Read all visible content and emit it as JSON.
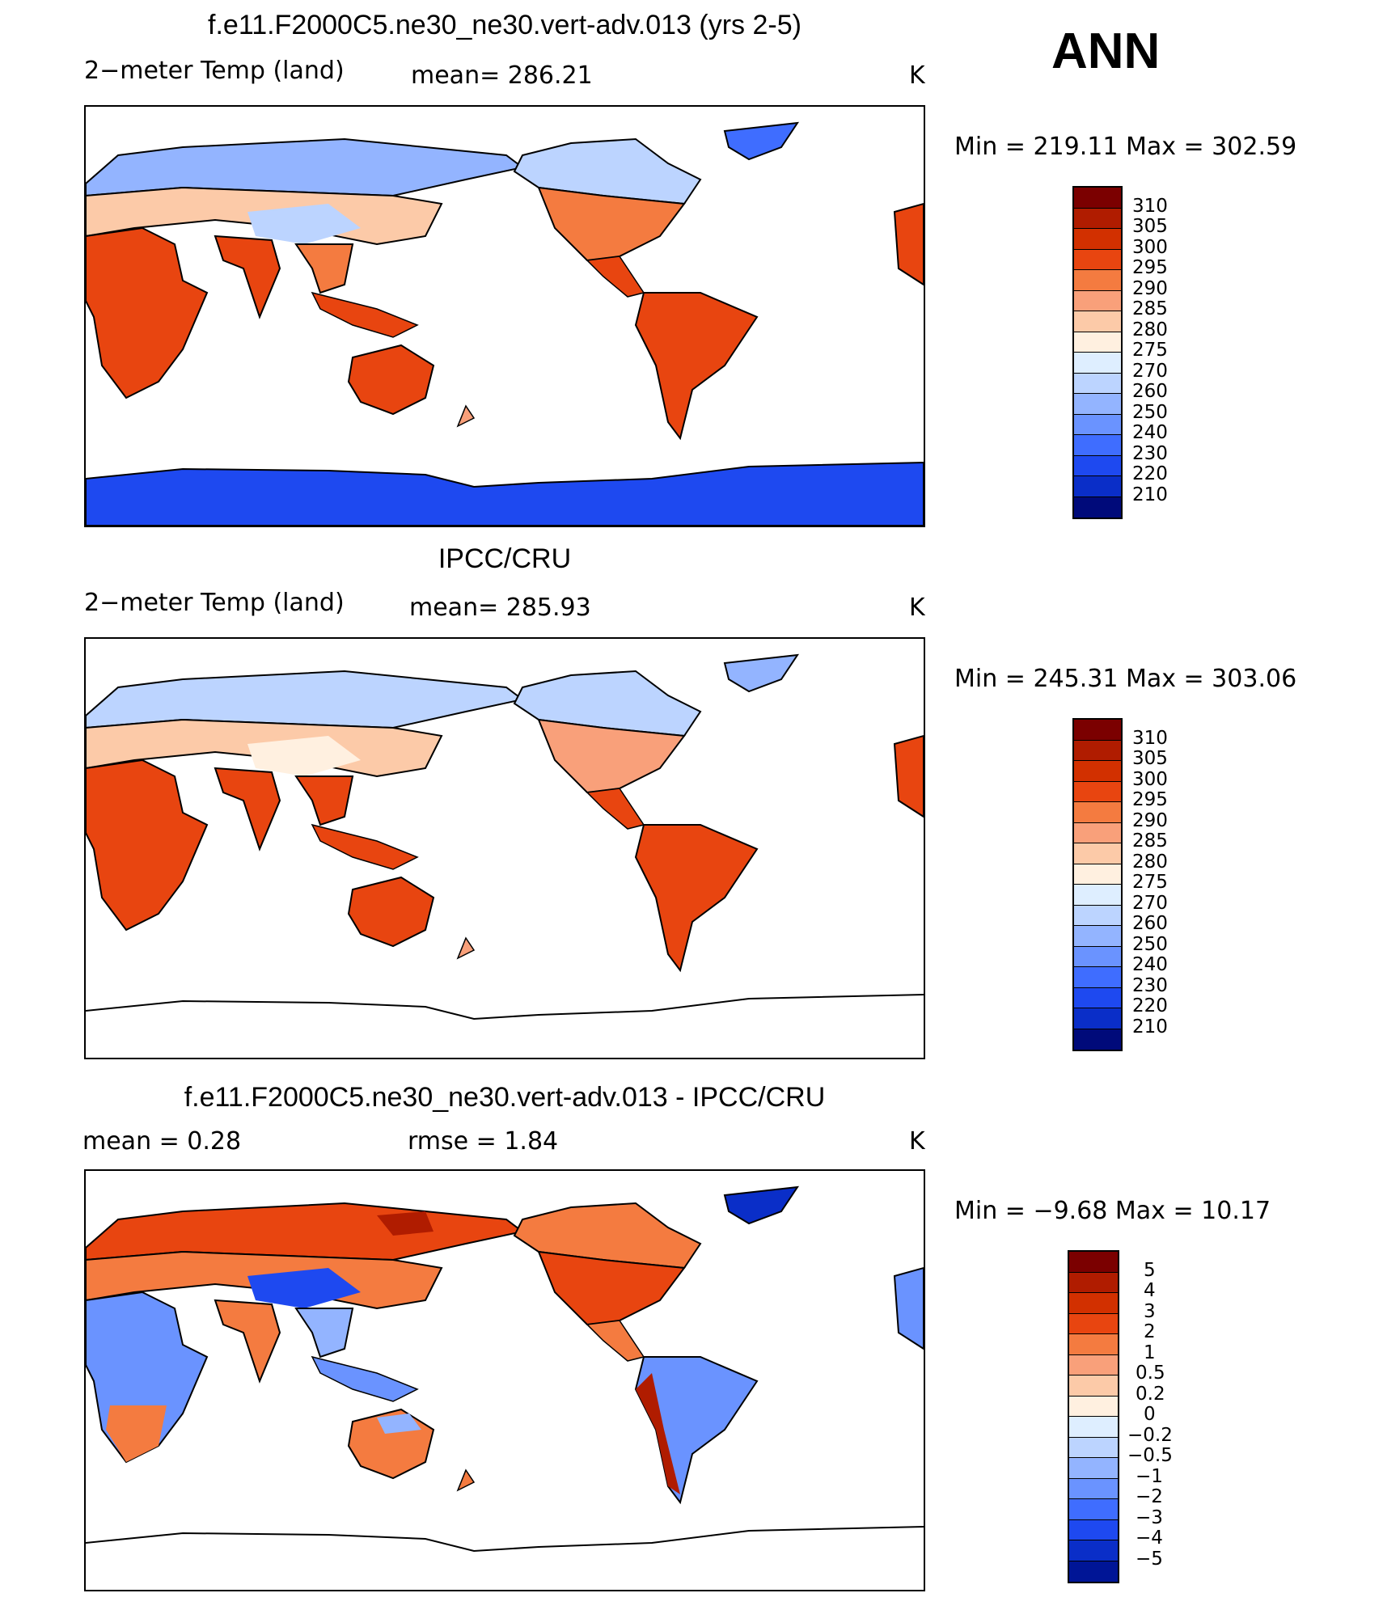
{
  "season": "ANN",
  "colors": {
    "scale": [
      "#7b0000",
      "#b01c00",
      "#d23000",
      "#e84510",
      "#f47b40",
      "#f9a07a",
      "#fccaa8",
      "#fff0e0",
      "#deeeff",
      "#bcd4ff",
      "#93b4ff",
      "#6a93ff",
      "#3f6dff",
      "#1e49f0",
      "#0a2ec8",
      "#001596",
      "#000a7a"
    ],
    "diff_scale": [
      "#7b0000",
      "#b01c00",
      "#d23000",
      "#e84510",
      "#f47b40",
      "#f9a07a",
      "#fccaa8",
      "#fff0e0",
      "#deeeff",
      "#bcd4ff",
      "#93b4ff",
      "#6a93ff",
      "#3f6dff",
      "#1e49f0",
      "#0a2ec8",
      "#001596"
    ]
  },
  "panels": [
    {
      "title": "f.e11.F2000C5.ne30_ne30.vert-adv.013 (yrs 2-5)",
      "variable": "2−meter Temp (land)",
      "stat_left": "mean=  286.21",
      "units": "K",
      "minmax": "Min  =  219.11  Max  =  302.59",
      "levels": [
        "310",
        "305",
        "300",
        "295",
        "290",
        "285",
        "280",
        "275",
        "270",
        "260",
        "250",
        "240",
        "230",
        "220",
        "210"
      ],
      "antarctica_filled": true
    },
    {
      "title": "IPCC/CRU",
      "variable": "2−meter Temp (land)",
      "stat_left": "mean=  285.93",
      "units": "K",
      "minmax": "Min  =  245.31  Max  =  303.06",
      "levels": [
        "310",
        "305",
        "300",
        "295",
        "290",
        "285",
        "280",
        "275",
        "270",
        "260",
        "250",
        "240",
        "230",
        "220",
        "210"
      ],
      "antarctica_filled": false
    },
    {
      "title": "f.e11.F2000C5.ne30_ne30.vert-adv.013 - IPCC/CRU",
      "variable": "",
      "stat_left": "mean =     0.28",
      "stat_mid": "rmse =     1.84",
      "units": "K",
      "minmax": "Min  =    −9.68  Max  =    10.17",
      "levels": [
        "5",
        "4",
        "3",
        "2",
        "1",
        "0.5",
        "0.2",
        "0",
        "−0.2",
        "−0.5",
        "−1",
        "−2",
        "−3",
        "−4",
        "−5"
      ],
      "antarctica_filled": false
    }
  ]
}
